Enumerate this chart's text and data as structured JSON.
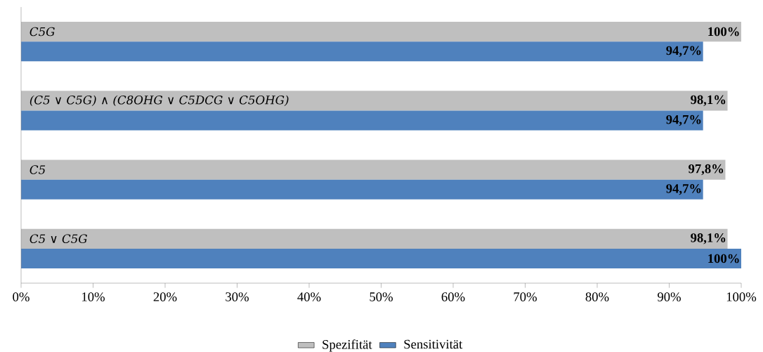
{
  "chart_data": {
    "type": "bar",
    "orientation": "horizontal",
    "categories": [
      "C5G",
      "(C5 ∨ C5G) ∧ (C8OHG ∨ C5DCG ∨ C5OHG)",
      "C5",
      "C5 ∨ C5G"
    ],
    "series": [
      {
        "name": "Spezifität",
        "color": "#bfbfbf",
        "values": [
          100,
          98.1,
          97.8,
          98.1
        ],
        "value_labels": [
          "100%",
          "98,1%",
          "97,8%",
          "98,1%"
        ]
      },
      {
        "name": "Sensitivität",
        "color": "#4f81bd",
        "values": [
          94.7,
          94.7,
          94.7,
          100
        ],
        "value_labels": [
          "94,7%",
          "94,7%",
          "94,7%",
          "100%"
        ]
      }
    ],
    "xlim": [
      0,
      100
    ],
    "xticks": [
      {
        "value": 0,
        "label": "0%"
      },
      {
        "value": 10,
        "label": "10%"
      },
      {
        "value": 20,
        "label": "20%"
      },
      {
        "value": 30,
        "label": "30%"
      },
      {
        "value": 40,
        "label": "40%"
      },
      {
        "value": 50,
        "label": "50%"
      },
      {
        "value": 60,
        "label": "60%"
      },
      {
        "value": 70,
        "label": "70%"
      },
      {
        "value": 80,
        "label": "80%"
      },
      {
        "value": 90,
        "label": "90%"
      },
      {
        "value": 100,
        "label": "100%"
      }
    ],
    "grid": false,
    "legend": "bottom"
  }
}
